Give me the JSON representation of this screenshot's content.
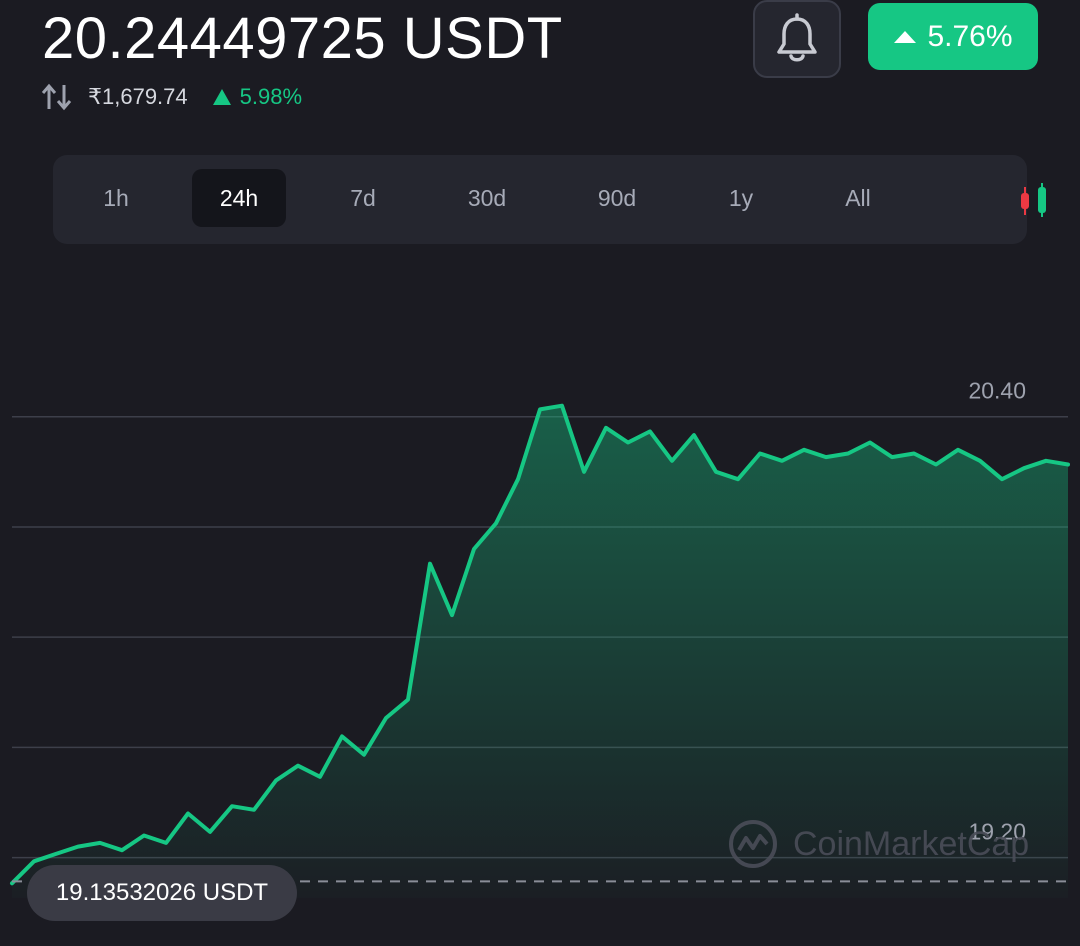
{
  "header": {
    "price": "20.24449725 USDT",
    "fiat_price": "₹1,679.74",
    "fiat_change": "5.98%",
    "change_badge": "5.76%",
    "icons": {
      "swap": "swap-vertical-icon",
      "bell": "bell-icon",
      "up": "triangle-up-icon"
    }
  },
  "tabs": [
    {
      "label": "1h",
      "active": false
    },
    {
      "label": "24h",
      "active": true
    },
    {
      "label": "7d",
      "active": false
    },
    {
      "label": "30d",
      "active": false
    },
    {
      "label": "90d",
      "active": false
    },
    {
      "label": "1y",
      "active": false
    },
    {
      "label": "All",
      "active": false
    }
  ],
  "chart_data": {
    "type": "area",
    "title": "",
    "xlabel": "",
    "ylabel": "",
    "ylim": [
      19.09,
      20.5
    ],
    "ytick_labels": [
      "20.40",
      "19.20"
    ],
    "grid": true,
    "x": [
      0,
      0.5,
      1,
      1.5,
      2,
      2.5,
      3,
      3.5,
      4,
      4.5,
      5,
      5.5,
      6,
      6.5,
      7,
      7.5,
      8,
      8.5,
      9,
      9.5,
      10,
      10.5,
      11,
      11.5,
      12,
      12.5,
      13,
      13.5,
      14,
      14.5,
      15,
      15.5,
      16,
      16.5,
      17,
      17.5,
      18,
      18.5,
      19,
      19.5,
      20,
      20.5,
      21,
      21.5,
      22,
      22.5,
      23,
      23.5,
      24
    ],
    "series": [
      {
        "values": [
          19.13,
          19.19,
          19.21,
          19.23,
          19.24,
          19.22,
          19.26,
          19.24,
          19.32,
          19.27,
          19.34,
          19.33,
          19.41,
          19.45,
          19.42,
          19.53,
          19.48,
          19.58,
          19.63,
          20.0,
          19.86,
          20.04,
          20.11,
          20.23,
          20.42,
          20.43,
          20.25,
          20.37,
          20.33,
          20.36,
          20.28,
          20.35,
          20.25,
          20.23,
          20.3,
          20.28,
          20.31,
          20.29,
          20.3,
          20.33,
          20.29,
          20.3,
          20.27,
          20.31,
          20.28,
          20.23,
          20.26,
          20.28,
          20.27
        ],
        "color": "#16c784"
      }
    ],
    "reference_line": {
      "value": 19.13532026,
      "label": "19.13532026 USDT"
    }
  },
  "watermark": "CoinMarketCap",
  "colors": {
    "background": "#1b1b22",
    "positive": "#16c784",
    "negative": "#ea3943",
    "grid": "#3d3f4a",
    "card": "#25262f"
  }
}
